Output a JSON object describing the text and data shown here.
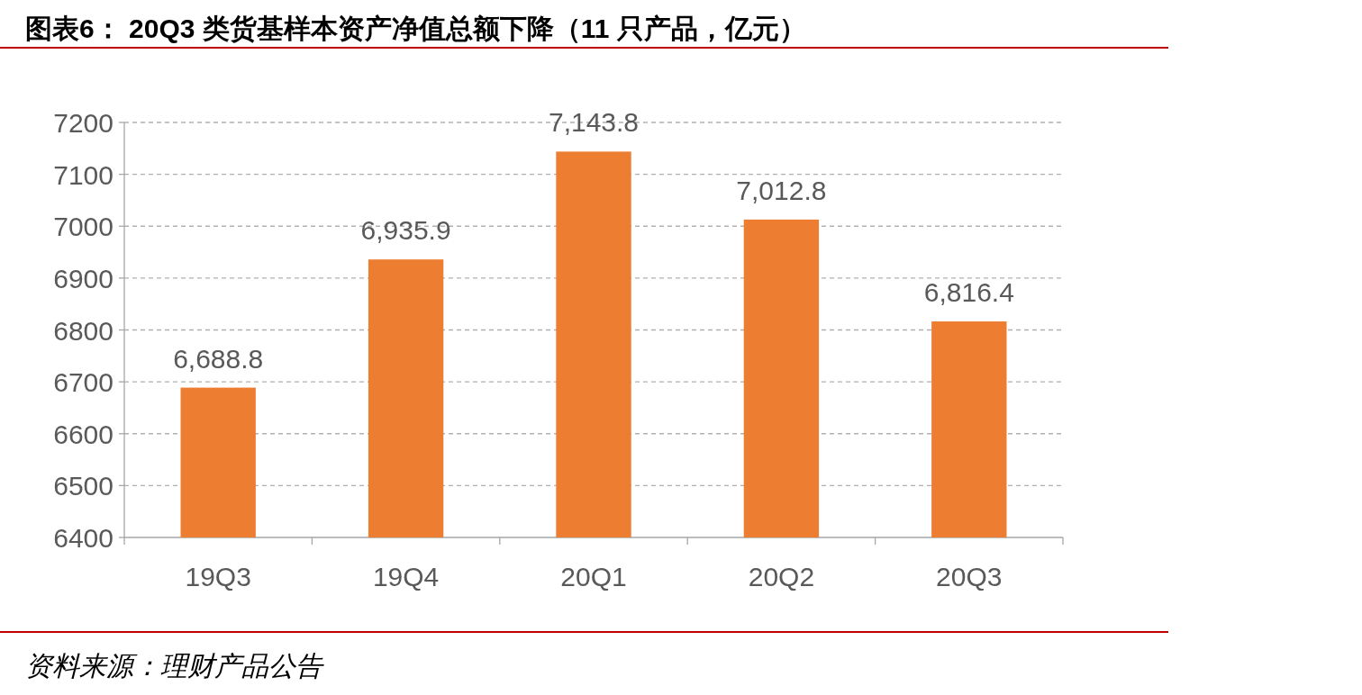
{
  "chart_data": {
    "type": "bar",
    "title": "图表6：  20Q3 类货基样本资产净值总额下降（11 只产品，亿元）",
    "categories": [
      "19Q3",
      "19Q4",
      "20Q1",
      "20Q2",
      "20Q3"
    ],
    "values": [
      6688.8,
      6935.9,
      7143.8,
      7012.8,
      6816.4
    ],
    "value_labels": [
      "6,688.8",
      "6,935.9",
      "7,143.8",
      "7,012.8",
      "6,816.4"
    ],
    "color": "#ed7d31",
    "ylim": [
      6400,
      7200
    ],
    "yticks": [
      6400,
      6500,
      6600,
      6700,
      6800,
      6900,
      7000,
      7100,
      7200
    ],
    "grid": "y",
    "annotations": [
      "资料来源：理财产品公告"
    ]
  }
}
